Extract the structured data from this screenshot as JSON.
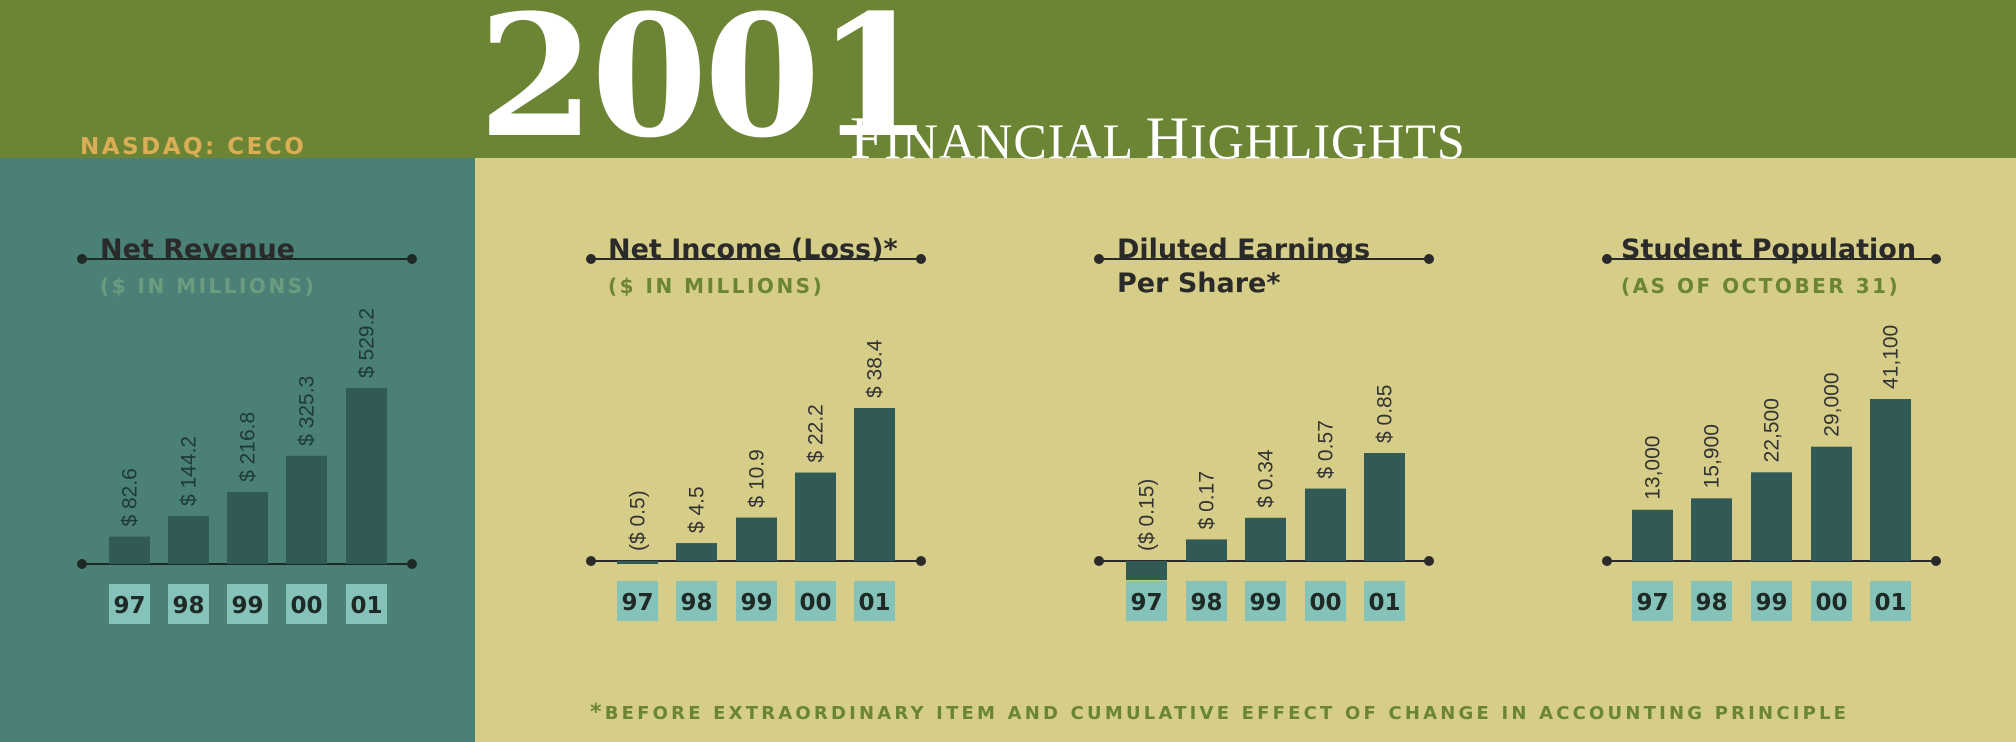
{
  "header": {
    "ticker": "NASDAQ: CECO",
    "year": "2001",
    "subtitle_cap1": "F",
    "subtitle_rest1": "INANCIAL ",
    "subtitle_cap2": "H",
    "subtitle_rest2": "IGHLIGHTS"
  },
  "footnote": {
    "asterisk": "*",
    "text": "BEFORE EXTRAORDINARY ITEM AND CUMULATIVE EFFECT OF CHANGE IN ACCOUNTING PRINCIPLE"
  },
  "colors": {
    "header_green": "#6b8535",
    "left_teal": "#4a8075",
    "right_khaki": "#d6ce88",
    "bar": "#315956",
    "year_box": "#85c2b9",
    "ticker_gold": "#d9ae57"
  },
  "chart_data": [
    {
      "type": "bar",
      "title": "Net Revenue",
      "subtitle": "($ IN MILLIONS)",
      "categories": [
        "97",
        "98",
        "99",
        "00",
        "01"
      ],
      "values": [
        82.6,
        144.2,
        216.8,
        325.3,
        529.2
      ],
      "labels": [
        "$ 82.6",
        "$ 144.2",
        "$ 216.8",
        "$ 325.3",
        "$ 529.2"
      ]
    },
    {
      "type": "bar",
      "title": "Net Income (Loss)*",
      "subtitle": "($ IN MILLIONS)",
      "categories": [
        "97",
        "98",
        "99",
        "00",
        "01"
      ],
      "values": [
        -0.5,
        4.5,
        10.9,
        22.2,
        38.4
      ],
      "labels": [
        "($ 0.5)",
        "$ 4.5",
        "$ 10.9",
        "$ 22.2",
        "$ 38.4"
      ]
    },
    {
      "type": "bar",
      "title_line1": "Diluted Earnings",
      "title_line2": "Per Share*",
      "categories": [
        "97",
        "98",
        "99",
        "00",
        "01"
      ],
      "values": [
        -0.15,
        0.17,
        0.34,
        0.57,
        0.85
      ],
      "labels": [
        "($ 0.15)",
        "$ 0.17",
        "$ 0.34",
        "$ 0.57",
        "$ 0.85"
      ]
    },
    {
      "type": "bar",
      "title": "Student Population",
      "subtitle": "(AS OF OCTOBER 31)",
      "categories": [
        "97",
        "98",
        "99",
        "00",
        "01"
      ],
      "values": [
        13000,
        15900,
        22500,
        29000,
        41100
      ],
      "labels": [
        "13,000",
        "15,900",
        "22,500",
        "29,000",
        "41,100"
      ]
    }
  ]
}
